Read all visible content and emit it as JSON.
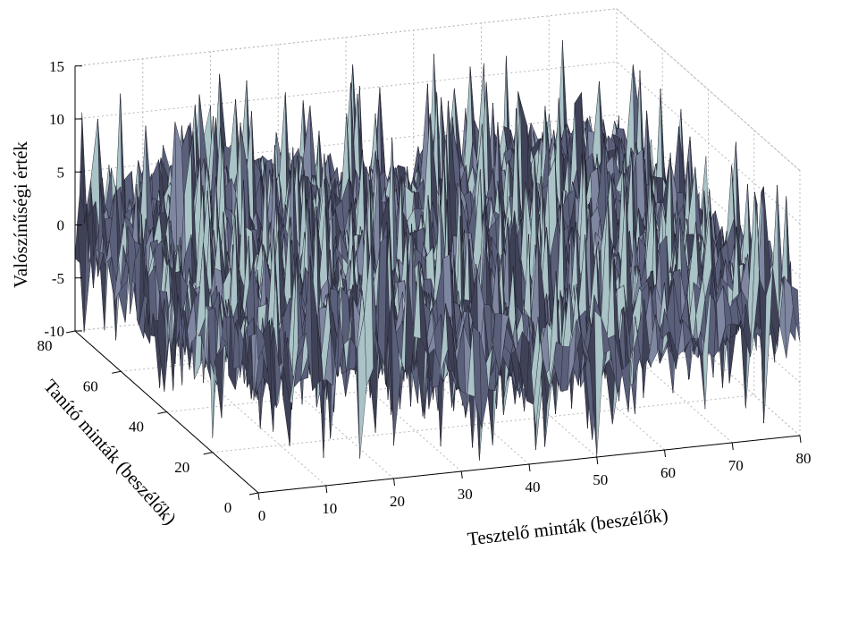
{
  "chart_data": {
    "type": "surface",
    "xlabel": "Tesztelő minták (beszélők)",
    "ylabel": "Tanító minták (beszélők)",
    "zlabel": "Valószínűségi érték",
    "x_ticks": [
      "0",
      "10",
      "20",
      "30",
      "40",
      "50",
      "60",
      "70",
      "80"
    ],
    "y_ticks": [
      "0",
      "20",
      "40",
      "60",
      "80"
    ],
    "z_ticks": [
      "-10",
      "-5",
      "0",
      "5",
      "10",
      "15"
    ],
    "xlim": [
      0,
      80
    ],
    "ylim": [
      0,
      80
    ],
    "zlim": [
      -10,
      15
    ],
    "grid": true,
    "surface_color": "#5a5f7a",
    "surface_highlight": "#a9c3c6",
    "edge_color": "#1c1d2a",
    "grid_color": "#b8b8b8",
    "surface_summary": {
      "z_min_approx": -10,
      "z_max_approx": 13,
      "z_typical_range": [
        -5,
        5
      ]
    }
  }
}
